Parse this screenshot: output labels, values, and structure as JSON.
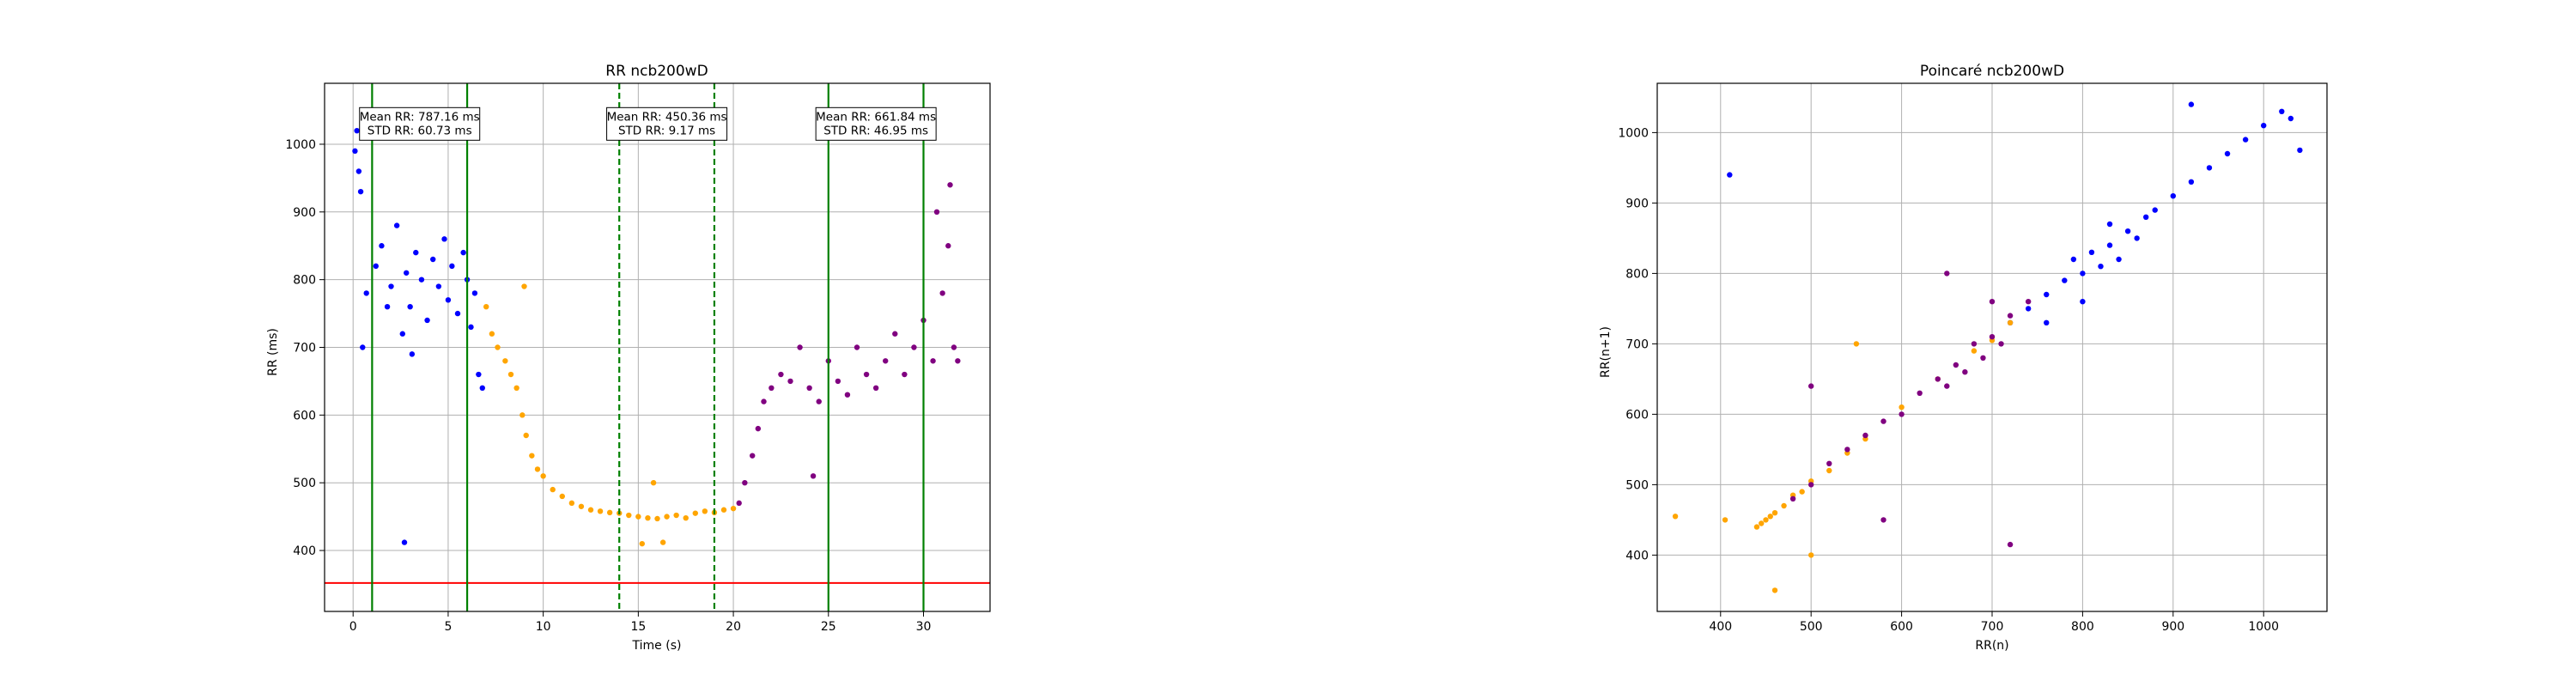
{
  "chart_data": [
    {
      "type": "scatter",
      "title": "RR ncb200wD",
      "xlabel": "Time (s)",
      "ylabel": "RR (ms)",
      "xlim": [
        -1.5,
        33.5
      ],
      "ylim": [
        310,
        1090
      ],
      "xticks": [
        0,
        5,
        10,
        15,
        20,
        25,
        30
      ],
      "yticks": [
        400,
        500,
        600,
        700,
        800,
        900,
        1000
      ],
      "grid": true,
      "hline": {
        "y": 352,
        "color": "#ff0000"
      },
      "vlines": [
        {
          "x": 1,
          "style": "solid",
          "color": "#008000"
        },
        {
          "x": 6,
          "style": "solid",
          "color": "#008000"
        },
        {
          "x": 14,
          "style": "dashed",
          "color": "#008000"
        },
        {
          "x": 19,
          "style": "dashed",
          "color": "#008000"
        },
        {
          "x": 25,
          "style": "solid",
          "color": "#008000"
        },
        {
          "x": 30,
          "style": "solid",
          "color": "#008000"
        }
      ],
      "annotations": [
        {
          "x": 3.5,
          "y": 1030,
          "lines": [
            "Mean RR: 787.16 ms",
            "STD RR: 60.73 ms"
          ]
        },
        {
          "x": 16.5,
          "y": 1030,
          "lines": [
            "Mean RR: 450.36 ms",
            "STD RR: 9.17 ms"
          ]
        },
        {
          "x": 27.5,
          "y": 1030,
          "lines": [
            "Mean RR: 661.84 ms",
            "STD RR: 46.95 ms"
          ]
        }
      ],
      "series": [
        {
          "color": "#0000ff",
          "points": [
            [
              0.1,
              990
            ],
            [
              0.2,
              1020
            ],
            [
              0.3,
              960
            ],
            [
              0.4,
              930
            ],
            [
              0.5,
              700
            ],
            [
              0.7,
              780
            ],
            [
              1.2,
              820
            ],
            [
              1.5,
              850
            ],
            [
              1.8,
              760
            ],
            [
              2.0,
              790
            ],
            [
              2.3,
              880
            ],
            [
              2.6,
              720
            ],
            [
              2.8,
              810
            ],
            [
              3.0,
              760
            ],
            [
              3.1,
              690
            ],
            [
              3.3,
              840
            ],
            [
              3.6,
              800
            ],
            [
              3.9,
              740
            ],
            [
              4.2,
              830
            ],
            [
              4.5,
              790
            ],
            [
              4.8,
              860
            ],
            [
              5.0,
              770
            ],
            [
              5.2,
              820
            ],
            [
              5.5,
              750
            ],
            [
              5.8,
              840
            ],
            [
              6.0,
              800
            ],
            [
              6.2,
              730
            ],
            [
              6.4,
              780
            ],
            [
              6.6,
              660
            ],
            [
              6.8,
              640
            ],
            [
              2.7,
              412
            ]
          ]
        },
        {
          "color": "#ffa500",
          "points": [
            [
              7.0,
              760
            ],
            [
              7.3,
              720
            ],
            [
              7.6,
              700
            ],
            [
              8.0,
              680
            ],
            [
              8.3,
              660
            ],
            [
              8.6,
              640
            ],
            [
              8.9,
              600
            ],
            [
              9.1,
              570
            ],
            [
              9.4,
              540
            ],
            [
              9.7,
              520
            ],
            [
              10.0,
              510
            ],
            [
              10.5,
              490
            ],
            [
              11.0,
              480
            ],
            [
              11.5,
              470
            ],
            [
              12.0,
              465
            ],
            [
              12.5,
              460
            ],
            [
              13.0,
              458
            ],
            [
              13.5,
              456
            ],
            [
              14.0,
              455
            ],
            [
              14.5,
              452
            ],
            [
              15.0,
              450
            ],
            [
              15.5,
              448
            ],
            [
              16.0,
              447
            ],
            [
              16.5,
              450
            ],
            [
              17.0,
              452
            ],
            [
              17.5,
              448
            ],
            [
              18.0,
              455
            ],
            [
              18.5,
              458
            ],
            [
              19.0,
              456
            ],
            [
              19.5,
              460
            ],
            [
              20.0,
              462
            ],
            [
              15.2,
              410
            ],
            [
              16.3,
              412
            ],
            [
              15.8,
              500
            ],
            [
              9.0,
              790
            ]
          ]
        },
        {
          "color": "#800080",
          "points": [
            [
              20.3,
              470
            ],
            [
              20.6,
              500
            ],
            [
              21.0,
              540
            ],
            [
              21.3,
              580
            ],
            [
              21.6,
              620
            ],
            [
              22.0,
              640
            ],
            [
              22.5,
              660
            ],
            [
              23.0,
              650
            ],
            [
              23.5,
              700
            ],
            [
              24.0,
              640
            ],
            [
              24.5,
              620
            ],
            [
              25.0,
              680
            ],
            [
              25.5,
              650
            ],
            [
              26.0,
              630
            ],
            [
              26.5,
              700
            ],
            [
              27.0,
              660
            ],
            [
              27.5,
              640
            ],
            [
              28.0,
              680
            ],
            [
              28.5,
              720
            ],
            [
              29.0,
              660
            ],
            [
              29.5,
              700
            ],
            [
              30.0,
              740
            ],
            [
              30.5,
              680
            ],
            [
              31.0,
              780
            ],
            [
              31.3,
              850
            ],
            [
              31.6,
              700
            ],
            [
              31.8,
              680
            ],
            [
              30.7,
              900
            ],
            [
              31.4,
              940
            ],
            [
              24.2,
              510
            ]
          ]
        }
      ]
    },
    {
      "type": "scatter",
      "title": "Poincaré ncb200wD",
      "xlabel": "RR(n)",
      "ylabel": "RR(n+1)",
      "xlim": [
        330,
        1070
      ],
      "ylim": [
        320,
        1070
      ],
      "xticks": [
        400,
        500,
        600,
        700,
        800,
        900,
        1000
      ],
      "yticks": [
        400,
        500,
        600,
        700,
        800,
        900,
        1000
      ],
      "grid": true,
      "series": [
        {
          "color": "#0000ff",
          "points": [
            [
              720,
              730
            ],
            [
              740,
              750
            ],
            [
              760,
              770
            ],
            [
              780,
              790
            ],
            [
              790,
              820
            ],
            [
              800,
              800
            ],
            [
              810,
              830
            ],
            [
              820,
              810
            ],
            [
              830,
              840
            ],
            [
              840,
              820
            ],
            [
              850,
              860
            ],
            [
              860,
              850
            ],
            [
              870,
              880
            ],
            [
              880,
              890
            ],
            [
              900,
              910
            ],
            [
              920,
              930
            ],
            [
              940,
              950
            ],
            [
              960,
              970
            ],
            [
              980,
              990
            ],
            [
              1000,
              1010
            ],
            [
              1020,
              1030
            ],
            [
              1030,
              1020
            ],
            [
              1040,
              975
            ],
            [
              920,
              1040
            ],
            [
              410,
              940
            ],
            [
              760,
              730
            ],
            [
              800,
              760
            ],
            [
              830,
              870
            ]
          ]
        },
        {
          "color": "#ffa500",
          "points": [
            [
              440,
              440
            ],
            [
              445,
              445
            ],
            [
              450,
              450
            ],
            [
              455,
              455
            ],
            [
              460,
              460
            ],
            [
              470,
              470
            ],
            [
              480,
              485
            ],
            [
              490,
              490
            ],
            [
              500,
              505
            ],
            [
              520,
              520
            ],
            [
              540,
              545
            ],
            [
              560,
              565
            ],
            [
              600,
              610
            ],
            [
              640,
              650
            ],
            [
              680,
              690
            ],
            [
              700,
              705
            ],
            [
              720,
              730
            ],
            [
              350,
              455
            ],
            [
              405,
              450
            ],
            [
              460,
              350
            ],
            [
              500,
              400
            ],
            [
              550,
              700
            ]
          ]
        },
        {
          "color": "#800080",
          "points": [
            [
              480,
              480
            ],
            [
              500,
              500
            ],
            [
              520,
              530
            ],
            [
              540,
              550
            ],
            [
              560,
              570
            ],
            [
              580,
              590
            ],
            [
              600,
              600
            ],
            [
              620,
              630
            ],
            [
              640,
              650
            ],
            [
              650,
              640
            ],
            [
              660,
              670
            ],
            [
              670,
              660
            ],
            [
              680,
              700
            ],
            [
              690,
              680
            ],
            [
              700,
              710
            ],
            [
              710,
              700
            ],
            [
              720,
              740
            ],
            [
              740,
              760
            ],
            [
              580,
              450
            ],
            [
              720,
              415
            ],
            [
              650,
              800
            ],
            [
              700,
              760
            ],
            [
              500,
              640
            ]
          ]
        }
      ]
    }
  ]
}
